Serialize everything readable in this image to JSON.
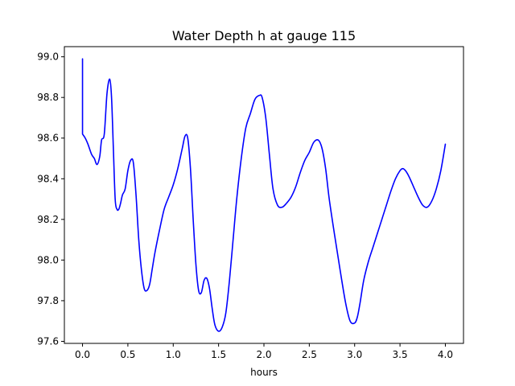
{
  "chart_data": {
    "type": "line",
    "title": "Water Depth h at gauge 115",
    "xlabel": "hours",
    "ylabel": "",
    "xlim": [
      -0.2,
      4.2
    ],
    "ylim": [
      97.59,
      99.05
    ],
    "xticks": [
      0.0,
      0.5,
      1.0,
      1.5,
      2.0,
      2.5,
      3.0,
      3.5,
      4.0
    ],
    "xtick_labels": [
      "0.0",
      "0.5",
      "1.0",
      "1.5",
      "2.0",
      "2.5",
      "3.0",
      "3.5",
      "4.0"
    ],
    "yticks": [
      97.6,
      97.8,
      98.0,
      98.2,
      98.4,
      98.6,
      98.8,
      99.0
    ],
    "ytick_labels": [
      "97.6",
      "97.8",
      "98.0",
      "98.2",
      "98.4",
      "98.6",
      "98.8",
      "99.0"
    ],
    "grid": false,
    "line_color": "#0000ff",
    "series": [
      {
        "x": [
          0.0,
          0.0,
          0.03,
          0.06,
          0.1,
          0.13,
          0.16,
          0.19,
          0.21,
          0.24,
          0.27,
          0.3,
          0.32,
          0.34,
          0.36,
          0.38,
          0.4,
          0.42,
          0.44,
          0.47,
          0.5,
          0.53,
          0.56,
          0.59,
          0.62,
          0.65,
          0.68,
          0.71,
          0.74,
          0.77,
          0.8,
          0.85,
          0.9,
          0.95,
          1.0,
          1.05,
          1.1,
          1.13,
          1.16,
          1.19,
          1.22,
          1.25,
          1.28,
          1.31,
          1.34,
          1.37,
          1.4,
          1.43,
          1.46,
          1.5,
          1.54,
          1.58,
          1.62,
          1.66,
          1.7,
          1.75,
          1.8,
          1.85,
          1.9,
          1.95,
          1.98,
          2.02,
          2.06,
          2.1,
          2.15,
          2.2,
          2.25,
          2.3,
          2.35,
          2.4,
          2.45,
          2.5,
          2.55,
          2.6,
          2.64,
          2.68,
          2.72,
          2.78,
          2.84,
          2.9,
          2.95,
          3.0,
          3.03,
          3.06,
          3.1,
          3.15,
          3.2,
          3.25,
          3.3,
          3.35,
          3.4,
          3.45,
          3.5,
          3.53,
          3.56,
          3.6,
          3.65,
          3.7,
          3.75,
          3.8,
          3.85,
          3.9,
          3.95,
          4.0
        ],
        "y": [
          98.99,
          98.62,
          98.6,
          98.57,
          98.52,
          98.5,
          98.47,
          98.51,
          98.59,
          98.62,
          98.82,
          98.89,
          98.8,
          98.55,
          98.3,
          98.25,
          98.25,
          98.28,
          98.32,
          98.35,
          98.44,
          98.49,
          98.48,
          98.32,
          98.1,
          97.95,
          97.86,
          97.85,
          97.88,
          97.96,
          98.04,
          98.15,
          98.25,
          98.31,
          98.37,
          98.45,
          98.55,
          98.61,
          98.6,
          98.45,
          98.2,
          97.98,
          97.85,
          97.84,
          97.9,
          97.91,
          97.86,
          97.76,
          97.68,
          97.65,
          97.67,
          97.74,
          97.9,
          98.1,
          98.3,
          98.5,
          98.65,
          98.72,
          98.79,
          98.81,
          98.8,
          98.7,
          98.52,
          98.35,
          98.27,
          98.26,
          98.28,
          98.31,
          98.36,
          98.43,
          98.49,
          98.53,
          98.58,
          98.59,
          98.55,
          98.45,
          98.3,
          98.12,
          97.95,
          97.79,
          97.7,
          97.69,
          97.72,
          97.79,
          97.9,
          97.99,
          98.06,
          98.13,
          98.2,
          98.27,
          98.34,
          98.4,
          98.44,
          98.45,
          98.44,
          98.41,
          98.36,
          98.31,
          98.27,
          98.26,
          98.29,
          98.35,
          98.44,
          98.57
        ]
      }
    ]
  }
}
